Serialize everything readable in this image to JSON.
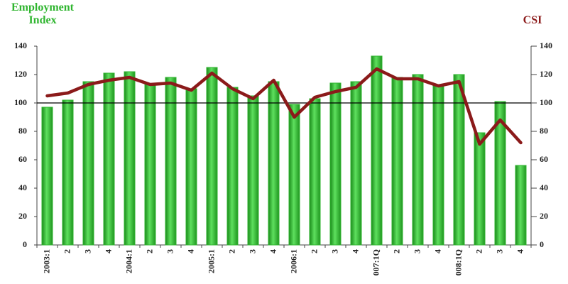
{
  "chart_data": {
    "type": "bar",
    "categories": [
      "2003:1",
      "2",
      "3",
      "4",
      "2004:1",
      "2",
      "3",
      "4",
      "2005:1",
      "2",
      "3",
      "4",
      "2006:1",
      "2",
      "3",
      "4",
      "007:1Q",
      "2",
      "3",
      "4",
      "008:1Q",
      "2",
      "3",
      "4"
    ],
    "series": [
      {
        "name": "Employment Index",
        "type": "bar",
        "axis": "y",
        "color": "#2fb52f",
        "values": [
          97,
          102,
          115,
          121,
          122,
          113,
          118,
          110,
          125,
          111,
          105,
          115,
          99,
          103,
          114,
          115,
          133,
          118,
          120,
          113,
          120,
          79,
          101,
          56
        ]
      },
      {
        "name": "CSI",
        "type": "line",
        "axis": "y2",
        "color": "#8b1a1a",
        "values": [
          105,
          107,
          113,
          116,
          118,
          113,
          114,
          109,
          121,
          110,
          103,
          116,
          90,
          104,
          108,
          111,
          124,
          117,
          117,
          112,
          115,
          71,
          88,
          72
        ]
      }
    ],
    "ylim": [
      0,
      140
    ],
    "yticks": [
      0,
      20,
      40,
      60,
      80,
      100,
      120,
      140
    ],
    "y2lim": [
      0,
      140
    ],
    "y2ticks": [
      0,
      20,
      40,
      60,
      80,
      100,
      120,
      140
    ],
    "reference_line": 100
  }
}
